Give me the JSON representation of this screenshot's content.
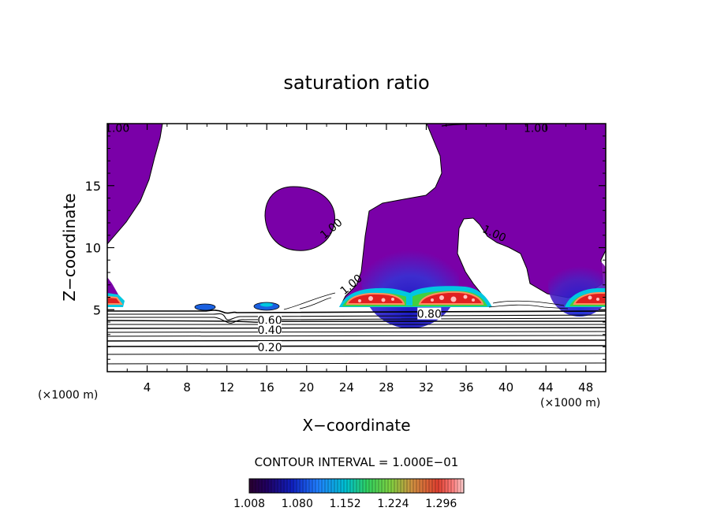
{
  "chart_data": {
    "type": "heatmap",
    "title": "saturation ratio",
    "xlabel": "X−coordinate",
    "ylabel": "Z−coordinate",
    "x_unit_left": "(×1000 m)",
    "x_unit_right": "(×1000 m)",
    "xlim": [
      0,
      50
    ],
    "ylim": [
      0,
      20
    ],
    "x_ticks": [
      4,
      8,
      12,
      16,
      20,
      24,
      28,
      32,
      36,
      40,
      44,
      48
    ],
    "y_ticks": [
      5,
      10,
      15
    ],
    "contour_interval_label": "CONTOUR INTERVAL = 1.000E−01",
    "contour_labels": [
      {
        "text": "1.00",
        "x": 1.0,
        "y": 19.6,
        "rotate": 0
      },
      {
        "text": "1.00",
        "x": 43.0,
        "y": 19.6,
        "rotate": 0
      },
      {
        "text": "1.00",
        "x": 22.5,
        "y": 11.5,
        "rotate": -40
      },
      {
        "text": "1.00",
        "x": 38.8,
        "y": 11.1,
        "rotate": 25
      },
      {
        "text": "1.00",
        "x": 24.5,
        "y": 7.0,
        "rotate": -40
      },
      {
        "text": "0.80",
        "x": 32.3,
        "y": 4.6,
        "rotate": 0
      },
      {
        "text": "0.60",
        "x": 16.3,
        "y": 4.1,
        "rotate": 0
      },
      {
        "text": "0.40",
        "x": 16.3,
        "y": 3.3,
        "rotate": 0
      },
      {
        "text": "0.20",
        "x": 16.3,
        "y": 1.9,
        "rotate": 0
      }
    ],
    "colorbar": {
      "min": 1.008,
      "max": 1.33,
      "ticks": [
        "1.008",
        "1.080",
        "1.152",
        "1.224",
        "1.296"
      ]
    },
    "colors": {
      "supersaturated": "#7a00a8",
      "deep_blue": "#1010c0",
      "cyan": "#00d0e0",
      "green": "#40d040",
      "orange": "#ff8040",
      "red": "#e02020",
      "pink": "#ffc0c0"
    }
  }
}
